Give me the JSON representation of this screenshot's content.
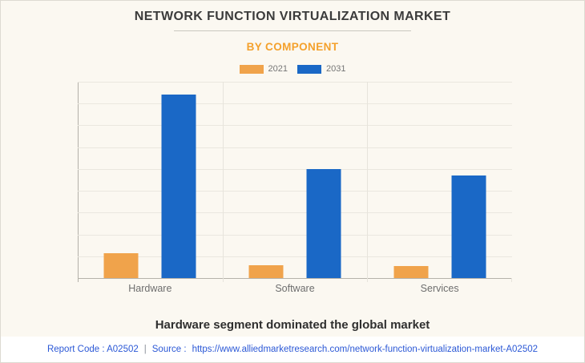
{
  "page": {
    "title": "NETWORK FUNCTION VIRTUALIZATION MARKET",
    "subtitle": "BY COMPONENT",
    "summary": "Hardware segment dominated the global market",
    "footer": {
      "report_code": "Report Code : A02502",
      "separator": "|",
      "source_label": "Source :",
      "source_url": "https://www.alliedmarketresearch.com/network-function-virtualization-market-A02502"
    }
  },
  "chart_data": {
    "type": "bar",
    "title": "NETWORK FUNCTION VIRTUALIZATION MARKET",
    "subtitle": "BY COMPONENT",
    "categories": [
      "Hardware",
      "Software",
      "Services"
    ],
    "series": [
      {
        "name": "2021",
        "color": "#F0A34B",
        "values": [
          1.15,
          0.6,
          0.55
        ]
      },
      {
        "name": "2031",
        "color": "#1A68C6",
        "values": [
          8.4,
          5.0,
          4.7
        ]
      }
    ],
    "ylim": [
      0,
      9
    ],
    "xlabel": "",
    "ylabel": "",
    "grid": true,
    "gridline_count": 9,
    "y_axis_labels_visible": false,
    "legend_position": "top",
    "units": "relative height, unlabeled axis (1 unit = one gridline interval)"
  },
  "colors": {
    "background": "#FBF8F1",
    "accent_orange": "#F4A12C",
    "bar_orange": "#F0A34B",
    "bar_blue": "#1A68C6",
    "link_blue": "#2B58D6",
    "footer_background": "#FFFFFF"
  }
}
